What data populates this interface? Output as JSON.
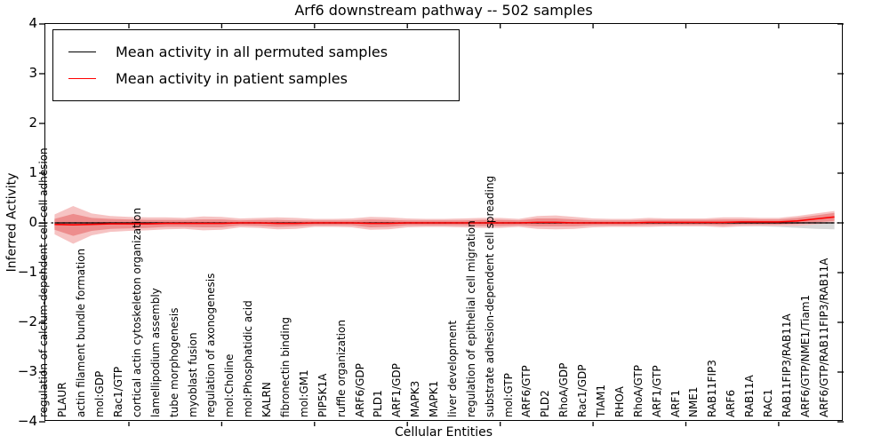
{
  "chart_data": {
    "type": "line",
    "title": "Arf6 downstream pathway -- 502 samples",
    "xlabel": "Cellular Entities",
    "ylabel": "Inferred Activity",
    "ylim": [
      -4,
      4
    ],
    "yticks": [
      4,
      3,
      2,
      1,
      0,
      -1,
      -2,
      -3,
      -4
    ],
    "grid": false,
    "legend_position": "upper left",
    "zero_line": {
      "y": 0,
      "style": "dashed"
    },
    "categories": [
      "regulation of calcium-dependent cell-cell adhesion",
      "PLAUR",
      "actin filament bundle formation",
      "mol:GDP",
      "Rac1/GTP",
      "cortical actin cytoskeleton organization",
      "lamellipodium assembly",
      "tube morphogenesis",
      "myoblast fusion",
      "regulation of axonogenesis",
      "mol:Choline",
      "mol:Phosphatidic acid",
      "KALRN",
      "fibronectin binding",
      "mol:GM1",
      "PIP5K1A",
      "ruffle organization",
      "ARF6/GDP",
      "PLD1",
      "ARF1/GDP",
      "MAPK3",
      "MAPK1",
      "liver development",
      "regulation of epithelial cell migration",
      "substrate adhesion-dependent cell spreading",
      "mol:GTP",
      "ARF6/GTP",
      "PLD2",
      "RhoA/GDP",
      "Rac1/GDP",
      "TIAM1",
      "RHOA",
      "RhoA/GTP",
      "ARF1/GTP",
      "ARF1",
      "NME1",
      "RAB11FIP3",
      "ARF6",
      "RAB11A",
      "RAC1",
      "RAB11FIP3/RAB11A",
      "ARF6/GTP/NME1/Tiam1",
      "ARF6/GTP/RAB11FIP3/RAB11A"
    ],
    "series": [
      {
        "name": "Mean activity in all permuted samples",
        "color": "#000000",
        "values": [
          0,
          0,
          0,
          0,
          0,
          0,
          0,
          0,
          0,
          0,
          0,
          0,
          0,
          0,
          0,
          0,
          0,
          0,
          0,
          0,
          0,
          0,
          0,
          0,
          0,
          0,
          0,
          0,
          0,
          0,
          0,
          0,
          0,
          0,
          0,
          0,
          0,
          0,
          0,
          0,
          0,
          0,
          0
        ],
        "band_half_width": [
          0.1,
          0.14,
          0.09,
          0.07,
          0.07,
          0.07,
          0.07,
          0.07,
          0.07,
          0.07,
          0.07,
          0.07,
          0.07,
          0.07,
          0.07,
          0.07,
          0.07,
          0.07,
          0.07,
          0.07,
          0.07,
          0.07,
          0.07,
          0.07,
          0.07,
          0.07,
          0.07,
          0.07,
          0.07,
          0.07,
          0.07,
          0.07,
          0.07,
          0.07,
          0.07,
          0.07,
          0.07,
          0.07,
          0.07,
          0.08,
          0.1,
          0.12,
          0.13
        ],
        "band_color": "#d9d9d9"
      },
      {
        "name": "Mean activity in patient samples",
        "color": "#ff0000",
        "values": [
          -0.03,
          -0.04,
          -0.03,
          -0.02,
          -0.02,
          -0.02,
          -0.01,
          -0.01,
          -0.01,
          -0.01,
          0,
          0,
          -0.01,
          -0.01,
          0,
          0,
          0,
          -0.01,
          -0.01,
          0,
          0,
          0,
          0,
          0,
          0,
          0,
          0.01,
          0.01,
          0,
          0,
          0,
          0,
          0.01,
          0.01,
          0.01,
          0.01,
          0.01,
          0.02,
          0.02,
          0.02,
          0.04,
          0.08,
          0.12
        ],
        "band_outer_half_width": [
          0.2,
          0.38,
          0.22,
          0.16,
          0.14,
          0.13,
          0.12,
          0.11,
          0.14,
          0.13,
          0.09,
          0.1,
          0.12,
          0.11,
          0.08,
          0.08,
          0.09,
          0.13,
          0.12,
          0.09,
          0.08,
          0.08,
          0.09,
          0.1,
          0.1,
          0.08,
          0.13,
          0.14,
          0.12,
          0.09,
          0.08,
          0.08,
          0.09,
          0.08,
          0.08,
          0.08,
          0.1,
          0.09,
          0.08,
          0.08,
          0.1,
          0.11,
          0.12
        ],
        "band_inner_half_width": [
          0.11,
          0.22,
          0.13,
          0.1,
          0.09,
          0.08,
          0.07,
          0.07,
          0.08,
          0.08,
          0.05,
          0.06,
          0.07,
          0.06,
          0.05,
          0.05,
          0.05,
          0.08,
          0.07,
          0.05,
          0.05,
          0.05,
          0.05,
          0.06,
          0.06,
          0.05,
          0.08,
          0.08,
          0.07,
          0.05,
          0.05,
          0.05,
          0.05,
          0.05,
          0.05,
          0.05,
          0.06,
          0.05,
          0.05,
          0.05,
          0.06,
          0.07,
          0.08
        ],
        "band_outer_color": "#f5bcbc",
        "band_inner_color": "#ec8a8a"
      }
    ]
  }
}
